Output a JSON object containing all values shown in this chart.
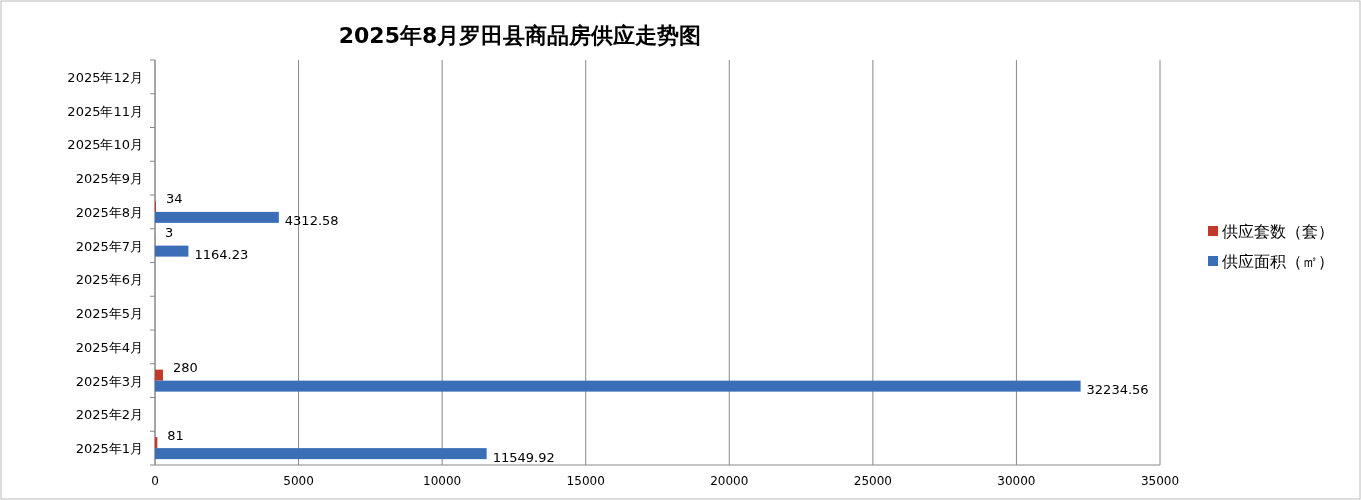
{
  "chart_data": {
    "type": "bar",
    "orientation": "horizontal",
    "title": "2025年8月罗田县商品房供应走势图",
    "categories": [
      "2025年12月",
      "2025年11月",
      "2025年10月",
      "2025年9月",
      "2025年8月",
      "2025年7月",
      "2025年6月",
      "2025年5月",
      "2025年4月",
      "2025年3月",
      "2025年2月",
      "2025年1月"
    ],
    "series": [
      {
        "name": "供应套数（套）",
        "color": "#c0392b",
        "values": [
          null,
          null,
          null,
          null,
          34,
          3,
          null,
          null,
          null,
          280,
          null,
          81
        ]
      },
      {
        "name": "供应面积（㎡）",
        "color": "#3a6fb8",
        "values": [
          null,
          null,
          null,
          null,
          4312.58,
          1164.23,
          null,
          null,
          null,
          32234.56,
          null,
          11549.92
        ]
      }
    ],
    "xlim": [
      0,
      35000
    ],
    "xticks": [
      0,
      5000,
      10000,
      15000,
      20000,
      25000,
      30000,
      35000
    ],
    "grid": "x",
    "legend": "right",
    "data_labels": true
  }
}
